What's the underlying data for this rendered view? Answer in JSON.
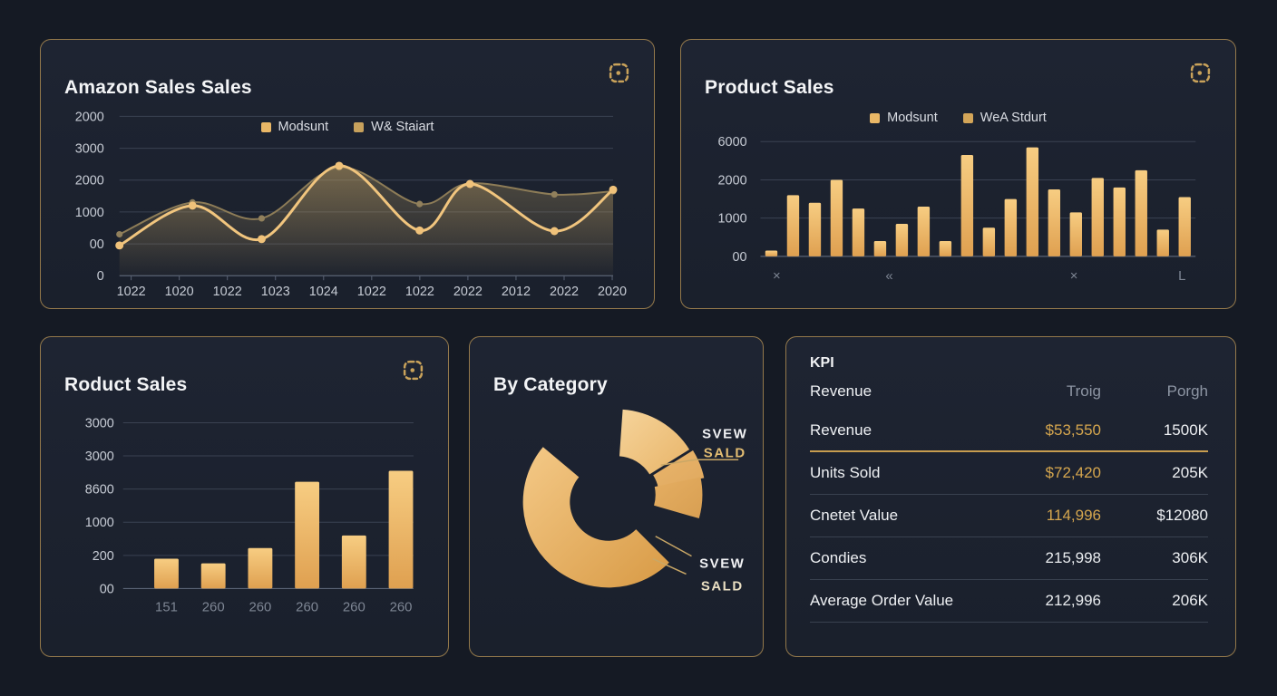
{
  "page": {
    "bg": "#151a24",
    "panel_bg": "#1c2230",
    "panel_border": "#b08c52",
    "accent": "#e9b766"
  },
  "panels": {
    "amazon_sales": {
      "title": "Amazon Sales Sales",
      "legend": [
        {
          "label": "Modsunt",
          "color": "#e9b766"
        },
        {
          "label": "W& Staiart",
          "color": "#c7a15c"
        }
      ]
    },
    "product_sales": {
      "title": "Product Sales",
      "legend": [
        {
          "label": "Modsunt",
          "color": "#e9b766"
        },
        {
          "label": "WeA Stdurt",
          "color": "#d3a558"
        }
      ]
    },
    "roduct_sales": {
      "title": "Roduct Sales"
    },
    "by_category": {
      "title": "By Category",
      "callouts": {
        "top": {
          "line1": "SVEW",
          "line2": "SALD"
        },
        "bottom": {
          "line1": "SVEW",
          "line2": "SALD"
        }
      }
    },
    "kpi": {
      "title": "KPI",
      "headers": {
        "label": "Revenue",
        "col1": "Troig",
        "col2": "Porgh"
      },
      "rows": [
        {
          "label": "Revenue",
          "mid": "$53,550",
          "right": "1500K"
        },
        {
          "label": "Units Sold",
          "mid": "$72,420",
          "right": "205K"
        },
        {
          "label": "Cnetet Value",
          "mid": "114,996",
          "right": "$12080"
        },
        {
          "label": "Condies",
          "mid": "215,998",
          "right": "306K"
        },
        {
          "label": "Average Order Value",
          "mid": "212,996",
          "right": "206K"
        }
      ]
    }
  },
  "chart_data": [
    {
      "type": "line",
      "title": "Amazon Sales Sales",
      "y_ticks": [
        "2000",
        "3000",
        "2000",
        "1000",
        "00",
        "0"
      ],
      "x_ticks": [
        "1022",
        "1020",
        "1022",
        "1023",
        "1024",
        "1022",
        "1022",
        "2022",
        "2012",
        "2022",
        "2020"
      ],
      "value_scale": "gridline-steps",
      "grid": true,
      "legend_position": "top-center",
      "series": [
        {
          "name": "Modsunt",
          "color": "#f1c57e",
          "point_x": [
            0,
            0.148,
            0.288,
            0.445,
            0.608,
            0.71,
            0.881,
            1
          ],
          "values": [
            -0.05,
            1.2,
            0.15,
            2.45,
            0.42,
            1.88,
            0.4,
            1.7
          ]
        },
        {
          "name": "W& Staiart",
          "color": "#8d7c57",
          "point_x": [
            0,
            0.148,
            0.288,
            0.445,
            0.608,
            0.71,
            0.881,
            1
          ],
          "values": [
            0.3,
            1.3,
            0.8,
            2.4,
            1.25,
            1.9,
            1.55,
            1.65
          ]
        }
      ]
    },
    {
      "type": "bar",
      "title": "Product Sales",
      "y_ticks": [
        "6000",
        "2000",
        "1000",
        "00"
      ],
      "x_ticks": [
        "×",
        "«",
        "×",
        "L"
      ],
      "bar_color_top": "#f7cd82",
      "bar_color_bottom": "#dfa050",
      "values": [
        150,
        1600,
        1400,
        2000,
        1250,
        400,
        850,
        1300,
        400,
        2650,
        750,
        1500,
        2850,
        1750,
        1150,
        2050,
        1800,
        2250,
        700,
        1550
      ]
    },
    {
      "type": "bar",
      "title": "Roduct Sales",
      "y_ticks": [
        "3000",
        "3000",
        "8600",
        "1000",
        "200",
        "00"
      ],
      "x_ticks": [
        "151",
        "260",
        "260",
        "260",
        "260",
        "260"
      ],
      "value_scale": "gridline-steps",
      "bar_color_top": "#f7cd82",
      "bar_color_bottom": "#dfa050",
      "values": [
        0.9,
        0.76,
        1.22,
        3.22,
        1.6,
        3.55
      ]
    },
    {
      "type": "pie",
      "title": "By Category",
      "shape": "donut",
      "slices": [
        {
          "name": "main",
          "start_deg": 135,
          "end_deg": 310,
          "colors": [
            "#f4c987",
            "#d89a45"
          ]
        },
        {
          "name": "upper",
          "start_deg": 4,
          "end_deg": 58,
          "colors": [
            "#f6d49b",
            "#e8b468"
          ]
        },
        {
          "name": "wedge",
          "start_deg": 58,
          "end_deg": 78,
          "colors": [
            "#e9b56c",
            "#e0a95f"
          ]
        },
        {
          "name": "lower",
          "start_deg": 78,
          "end_deg": 106,
          "colors": [
            "#e5ae62",
            "#d89f52"
          ]
        }
      ]
    }
  ]
}
